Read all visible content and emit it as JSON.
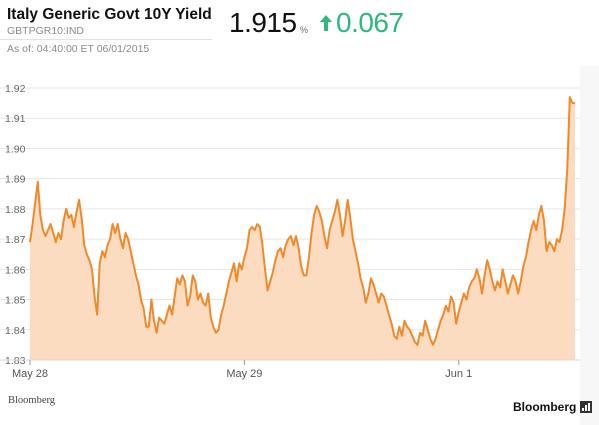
{
  "header": {
    "title": "Italy Generic Govt 10Y Yield",
    "ticker": "GBTPGR10:IND",
    "as_of": "As of: 04:40:00 ET 06/01/2015",
    "price": "1.915",
    "price_unit": "%",
    "change": "0.067",
    "change_direction": "up",
    "change_color": "#2db87d"
  },
  "footer": {
    "source": "Bloomberg",
    "logo": "Bloomberg"
  },
  "colors": {
    "line": "#f0892a",
    "fill": "#fbdcc0",
    "grid": "#e6e6e6",
    "plot_bg": "#ffffff",
    "page_bg": "#f7f7f7"
  },
  "chart_data": {
    "type": "area",
    "title": "",
    "xlabel": "",
    "ylabel": "",
    "ylim": [
      1.83,
      1.92
    ],
    "yticks": [
      "1.92",
      "1.91",
      "1.90",
      "1.89",
      "1.88",
      "1.87",
      "1.86",
      "1.85",
      "1.84",
      "1.83"
    ],
    "grid": true,
    "xticks": [
      {
        "label": "May 28",
        "index": 0
      },
      {
        "label": "May 29",
        "index": 83
      },
      {
        "label": "Jun 1",
        "index": 166
      }
    ],
    "series": [
      {
        "values": [
          1.869,
          1.875,
          1.882,
          1.889,
          1.878,
          1.873,
          1.871,
          1.873,
          1.875,
          1.872,
          1.869,
          1.872,
          1.87,
          1.876,
          1.88,
          1.877,
          1.878,
          1.874,
          1.879,
          1.883,
          1.877,
          1.868,
          1.865,
          1.863,
          1.86,
          1.851,
          1.845,
          1.862,
          1.866,
          1.864,
          1.868,
          1.87,
          1.875,
          1.872,
          1.875,
          1.87,
          1.867,
          1.872,
          1.87,
          1.866,
          1.862,
          1.858,
          1.855,
          1.85,
          1.847,
          1.841,
          1.841,
          1.85,
          1.843,
          1.839,
          1.844,
          1.843,
          1.842,
          1.845,
          1.848,
          1.845,
          1.851,
          1.857,
          1.855,
          1.858,
          1.856,
          1.848,
          1.851,
          1.858,
          1.856,
          1.85,
          1.852,
          1.849,
          1.848,
          1.852,
          1.844,
          1.841,
          1.839,
          1.84,
          1.845,
          1.848,
          1.852,
          1.856,
          1.859,
          1.862,
          1.856,
          1.862,
          1.86,
          1.864,
          1.867,
          1.873,
          1.874,
          1.873,
          1.875,
          1.874,
          1.868,
          1.86,
          1.853,
          1.856,
          1.859,
          1.863,
          1.866,
          1.867,
          1.864,
          1.868,
          1.87,
          1.871,
          1.868,
          1.871,
          1.867,
          1.861,
          1.858,
          1.858,
          1.864,
          1.872,
          1.878,
          1.881,
          1.879,
          1.876,
          1.871,
          1.867,
          1.873,
          1.876,
          1.879,
          1.883,
          1.878,
          1.871,
          1.876,
          1.883,
          1.877,
          1.87,
          1.866,
          1.862,
          1.857,
          1.854,
          1.849,
          1.852,
          1.857,
          1.855,
          1.852,
          1.849,
          1.852,
          1.851,
          1.848,
          1.845,
          1.842,
          1.838,
          1.837,
          1.841,
          1.838,
          1.843,
          1.841,
          1.84,
          1.838,
          1.836,
          1.835,
          1.839,
          1.838,
          1.843,
          1.84,
          1.837,
          1.835,
          1.837,
          1.84,
          1.843,
          1.845,
          1.848,
          1.846,
          1.851,
          1.849,
          1.842,
          1.846,
          1.849,
          1.852,
          1.85,
          1.854,
          1.856,
          1.857,
          1.86,
          1.857,
          1.852,
          1.858,
          1.863,
          1.86,
          1.856,
          1.853,
          1.856,
          1.854,
          1.86,
          1.856,
          1.852,
          1.855,
          1.858,
          1.856,
          1.852,
          1.856,
          1.861,
          1.864,
          1.869,
          1.873,
          1.876,
          1.873,
          1.878,
          1.881,
          1.876,
          1.866,
          1.869,
          1.868,
          1.866,
          1.87,
          1.869,
          1.873,
          1.88,
          1.893,
          1.917,
          1.915,
          1.915
        ]
      }
    ]
  }
}
